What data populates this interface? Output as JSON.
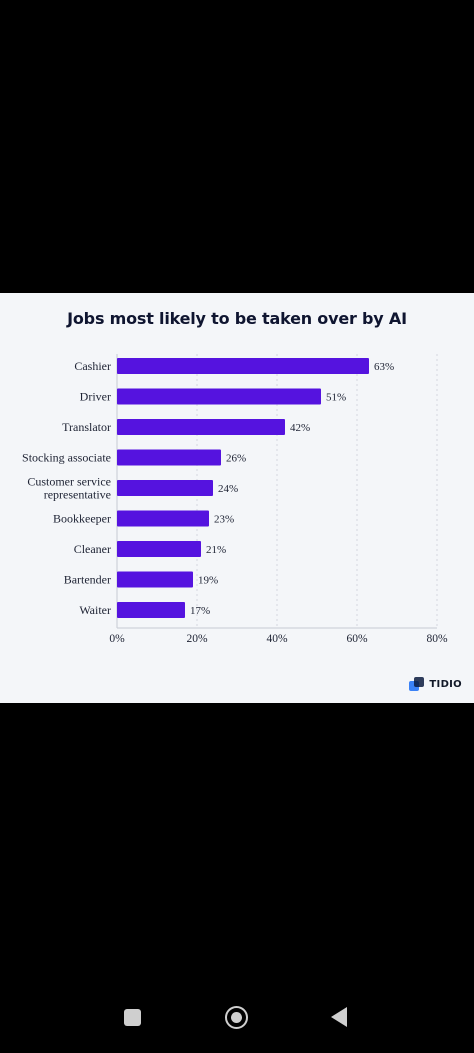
{
  "chart_data": {
    "type": "bar",
    "orientation": "horizontal",
    "title": "Jobs most likely to be taken over by AI",
    "categories": [
      "Cashier",
      "Driver",
      "Translator",
      "Stocking associate",
      "Customer service representative",
      "Bookkeeper",
      "Cleaner",
      "Bartender",
      "Waiter"
    ],
    "category_lines": [
      [
        "Cashier"
      ],
      [
        "Driver"
      ],
      [
        "Translator"
      ],
      [
        "Stocking associate"
      ],
      [
        "Customer service",
        "representative"
      ],
      [
        "Bookkeeper"
      ],
      [
        "Cleaner"
      ],
      [
        "Bartender"
      ],
      [
        "Waiter"
      ]
    ],
    "values": [
      63,
      51,
      42,
      26,
      24,
      23,
      21,
      19,
      17
    ],
    "value_labels": [
      "63%",
      "51%",
      "42%",
      "26%",
      "24%",
      "23%",
      "21%",
      "19%",
      "17%"
    ],
    "xlim": [
      0,
      80
    ],
    "xticks": [
      0,
      20,
      40,
      60,
      80
    ],
    "xtick_labels": [
      "0%",
      "20%",
      "40%",
      "60%",
      "80%"
    ],
    "xlabel": "",
    "ylabel": "",
    "grid": "vertical dashed",
    "legend": "none",
    "bar_color": "#5513df"
  },
  "brand": {
    "name": "TIDIO",
    "icon": "tidio-logo-icon"
  },
  "colors": {
    "bar": "#5513df",
    "card_background": "#f4f6f9",
    "screen_background": "#000000",
    "text": "#1d2233"
  },
  "navigation": {
    "recents_icon": "square-recents-icon",
    "home_icon": "circle-home-icon",
    "back_icon": "triangle-back-icon"
  }
}
